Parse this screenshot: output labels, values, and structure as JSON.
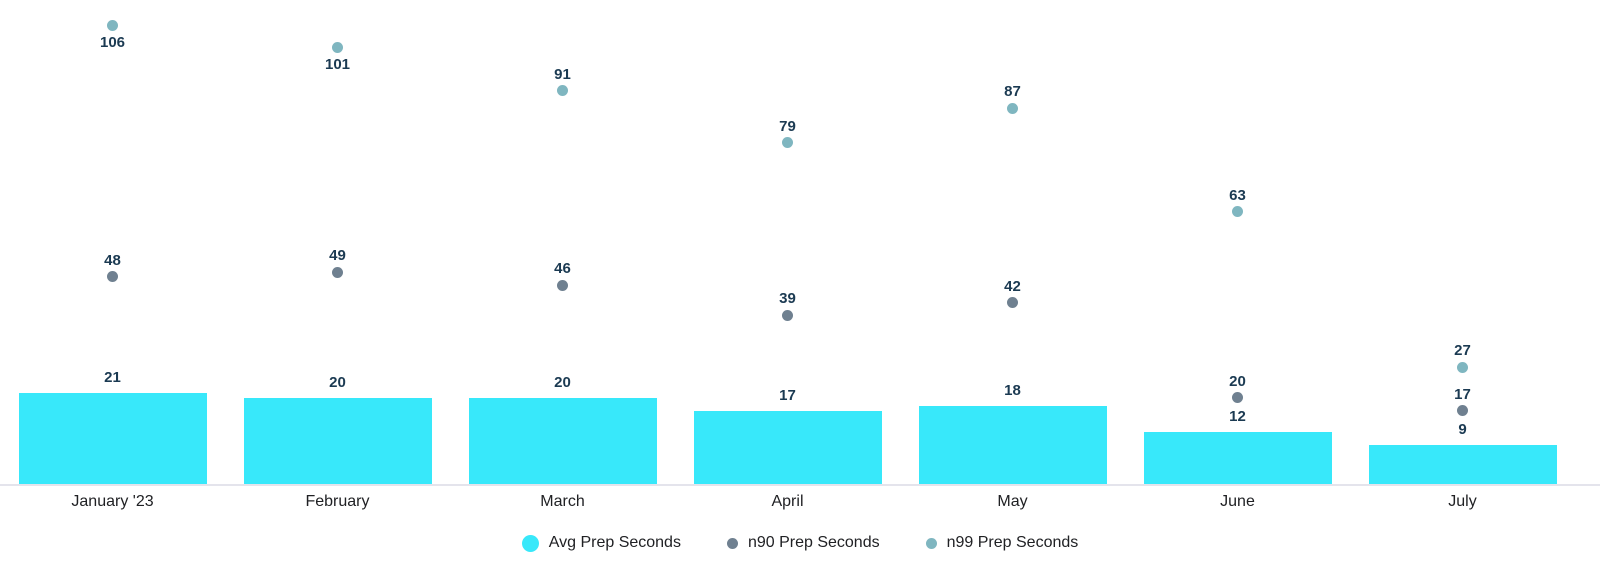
{
  "chart_data": {
    "type": "bar",
    "subtype": "bar-with-point-overlays",
    "title": "",
    "categories": [
      "January '23",
      "February",
      "March",
      "April",
      "May",
      "June",
      "July"
    ],
    "series": [
      {
        "name": "Avg Prep Seconds",
        "mark": "bar",
        "color": "#38E8FA",
        "values": [
          21,
          20,
          20,
          17,
          18,
          12,
          9
        ]
      },
      {
        "name": "n90 Prep Seconds",
        "mark": "point",
        "color": "#6F8090",
        "values": [
          48,
          49,
          46,
          39,
          42,
          20,
          17
        ]
      },
      {
        "name": "n99 Prep Seconds",
        "mark": "point",
        "color": "#7FB6C0",
        "values": [
          106,
          101,
          91,
          79,
          87,
          63,
          27
        ]
      }
    ],
    "xlabel": "",
    "ylabel": "",
    "ylim": [
      0,
      112
    ],
    "grid": false,
    "y_axis_visible": false,
    "value_labels": true,
    "legend_position": "bottom",
    "value_label_color": "#1B3A52",
    "axis_text_color": "#202124",
    "baseline_color": "#E4E4EC"
  }
}
